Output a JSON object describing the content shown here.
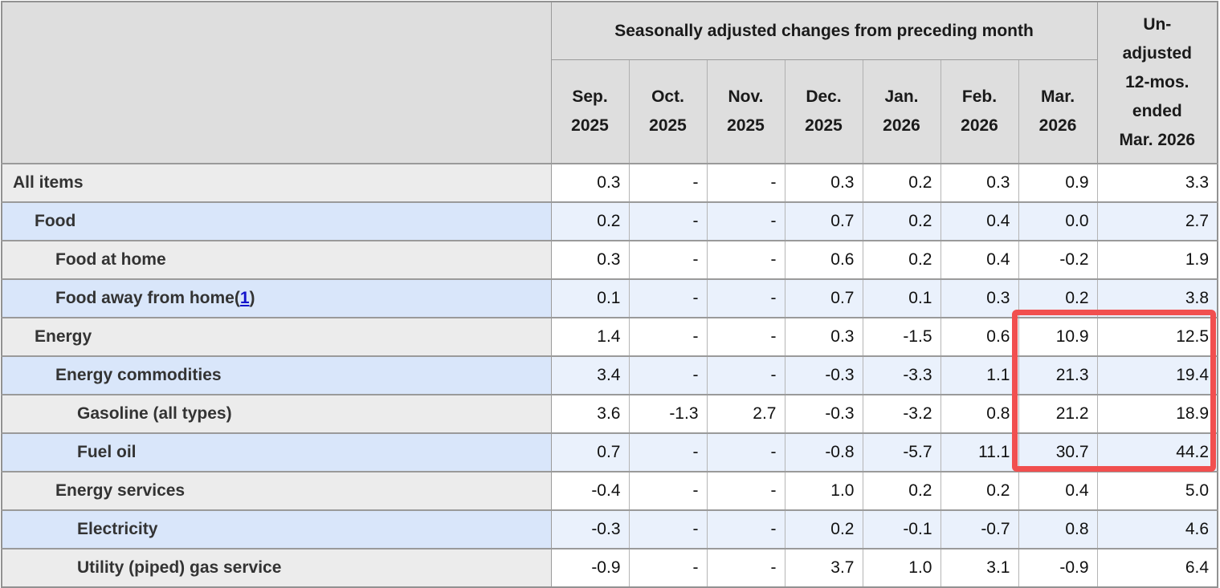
{
  "table": {
    "group_header": "Seasonally adjusted changes from preceding month",
    "unadjusted_header": "Un-adjusted 12-mos. ended Mar. 2026",
    "unadjusted_header_lines": [
      "Un-",
      "adjusted",
      "12-mos.",
      "ended",
      "Mar. 2026"
    ],
    "months": [
      "Sep. 2025",
      "Oct. 2025",
      "Nov. 2025",
      "Dec. 2025",
      "Jan. 2026",
      "Feb. 2026",
      "Mar. 2026"
    ],
    "rows": [
      {
        "label": "All items",
        "indent": 0,
        "values": [
          "0.3",
          "-",
          "-",
          "0.3",
          "0.2",
          "0.3",
          "0.9"
        ],
        "yoy": "3.3"
      },
      {
        "label": "Food",
        "indent": 1,
        "values": [
          "0.2",
          "-",
          "-",
          "0.7",
          "0.2",
          "0.4",
          "0.0"
        ],
        "yoy": "2.7"
      },
      {
        "label": "Food at home",
        "indent": 2,
        "values": [
          "0.3",
          "-",
          "-",
          "0.6",
          "0.2",
          "0.4",
          "-0.2"
        ],
        "yoy": "1.9"
      },
      {
        "label": "Food away from home",
        "indent": 2,
        "footnote": "1",
        "values": [
          "0.1",
          "-",
          "-",
          "0.7",
          "0.1",
          "0.3",
          "0.2"
        ],
        "yoy": "3.8"
      },
      {
        "label": "Energy",
        "indent": 1,
        "values": [
          "1.4",
          "-",
          "-",
          "0.3",
          "-1.5",
          "0.6",
          "10.9"
        ],
        "yoy": "12.5"
      },
      {
        "label": "Energy commodities",
        "indent": 2,
        "values": [
          "3.4",
          "-",
          "-",
          "-0.3",
          "-3.3",
          "1.1",
          "21.3"
        ],
        "yoy": "19.4"
      },
      {
        "label": "Gasoline (all types)",
        "indent": 3,
        "values": [
          "3.6",
          "-1.3",
          "2.7",
          "-0.3",
          "-3.2",
          "0.8",
          "21.2"
        ],
        "yoy": "18.9"
      },
      {
        "label": "Fuel oil",
        "indent": 3,
        "values": [
          "0.7",
          "-",
          "-",
          "-0.8",
          "-5.7",
          "11.1",
          "30.7"
        ],
        "yoy": "44.2"
      },
      {
        "label": "Energy services",
        "indent": 2,
        "values": [
          "-0.4",
          "-",
          "-",
          "1.0",
          "0.2",
          "0.2",
          "0.4"
        ],
        "yoy": "5.0"
      },
      {
        "label": "Electricity",
        "indent": 3,
        "values": [
          "-0.3",
          "-",
          "-",
          "0.2",
          "-0.1",
          "-0.7",
          "0.8"
        ],
        "yoy": "4.6"
      },
      {
        "label": "Utility (piped) gas service",
        "indent": 3,
        "values": [
          "-0.9",
          "-",
          "-",
          "3.7",
          "1.0",
          "3.1",
          "-0.9"
        ],
        "yoy": "6.4"
      }
    ]
  },
  "annotation": {
    "highlight_color": "#f14f4f",
    "highlighted_columns": [
      "Mar. 2026",
      "Un-adjusted 12-mos. ended Mar. 2026"
    ],
    "highlighted_rows": [
      "Energy",
      "Energy commodities",
      "Gasoline (all types)",
      "Fuel oil"
    ]
  },
  "colors": {
    "header_bg": "#dedede",
    "row_label_bg": "#ececec",
    "row_label_alt_bg": "#d9e6fa",
    "cell_bg": "#ffffff",
    "cell_alt_bg": "#eaf1fc",
    "border": "#9a9a9a",
    "link": "#1414cc"
  }
}
